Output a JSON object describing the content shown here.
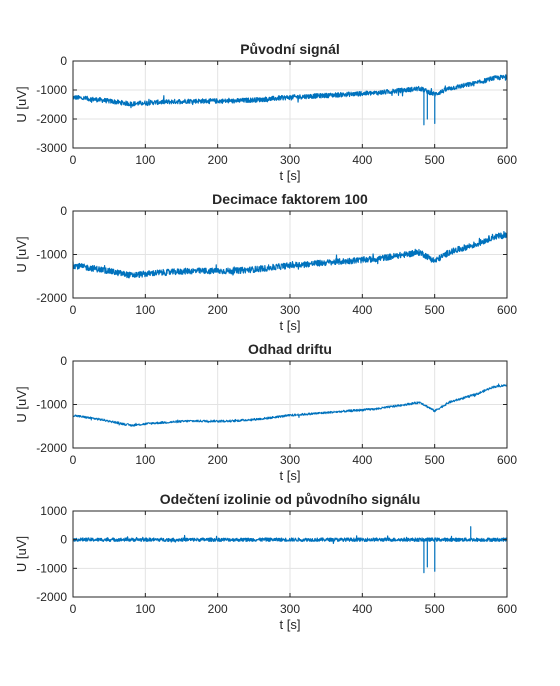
{
  "chart_data": [
    {
      "type": "line",
      "title": "Původní signál",
      "xlabel": "t [s]",
      "ylabel": "U [uV]",
      "xlim": [
        0,
        600
      ],
      "ylim": [
        -3000,
        0
      ],
      "xticks": [
        0,
        100,
        200,
        300,
        400,
        500,
        600
      ],
      "yticks": [
        -3000,
        -2000,
        -1000,
        0
      ],
      "grid": true,
      "color": "#0072BD",
      "trend_x": [
        0,
        40,
        80,
        110,
        160,
        220,
        260,
        300,
        340,
        380,
        420,
        460,
        480,
        500,
        520,
        540,
        560,
        580,
        600
      ],
      "trend_y": [
        -1250,
        -1350,
        -1480,
        -1430,
        -1380,
        -1380,
        -1330,
        -1250,
        -1200,
        -1150,
        -1100,
        -1000,
        -950,
        -1150,
        -950,
        -850,
        -750,
        -600,
        -550
      ],
      "noise": 80,
      "spikes": [
        [
          485,
          -2200
        ],
        [
          490,
          -2000
        ],
        [
          500,
          -2150
        ]
      ]
    },
    {
      "type": "line",
      "title": "Decimace faktorem 100",
      "xlabel": "t [s]",
      "ylabel": "U [uV]",
      "xlim": [
        0,
        600
      ],
      "ylim": [
        -2000,
        0
      ],
      "xticks": [
        0,
        100,
        200,
        300,
        400,
        500,
        600
      ],
      "yticks": [
        -2000,
        -1000,
        0
      ],
      "grid": true,
      "color": "#0072BD",
      "trend_x": [
        0,
        40,
        80,
        110,
        160,
        220,
        260,
        300,
        340,
        380,
        420,
        460,
        480,
        500,
        520,
        540,
        560,
        580,
        600
      ],
      "trend_y": [
        -1250,
        -1350,
        -1480,
        -1430,
        -1380,
        -1380,
        -1330,
        -1250,
        -1200,
        -1150,
        -1100,
        -1000,
        -950,
        -1150,
        -950,
        -850,
        -750,
        -600,
        -550
      ],
      "noise": 70,
      "spikes": []
    },
    {
      "type": "line",
      "title": "Odhad driftu",
      "xlabel": "t [s]",
      "ylabel": "U [uV]",
      "xlim": [
        0,
        600
      ],
      "ylim": [
        -2000,
        0
      ],
      "xticks": [
        0,
        100,
        200,
        300,
        400,
        500,
        600
      ],
      "yticks": [
        -2000,
        -1000,
        0
      ],
      "grid": true,
      "color": "#0072BD",
      "trend_x": [
        0,
        40,
        80,
        110,
        160,
        220,
        260,
        300,
        340,
        380,
        420,
        460,
        480,
        500,
        520,
        540,
        560,
        580,
        600
      ],
      "trend_y": [
        -1250,
        -1350,
        -1480,
        -1430,
        -1380,
        -1380,
        -1330,
        -1250,
        -1200,
        -1150,
        -1100,
        -1000,
        -950,
        -1150,
        -950,
        -850,
        -750,
        -600,
        -550
      ],
      "noise": 25,
      "spikes": []
    },
    {
      "type": "line",
      "title": "Odečtení izolinie od původního signálu",
      "xlabel": "t [s]",
      "ylabel": "U [uV]",
      "xlim": [
        0,
        600
      ],
      "ylim": [
        -2000,
        1000
      ],
      "xticks": [
        0,
        100,
        200,
        300,
        400,
        500,
        600
      ],
      "yticks": [
        -2000,
        -1000,
        0,
        1000
      ],
      "grid": true,
      "color": "#0072BD",
      "trend_x": [
        0,
        600
      ],
      "trend_y": [
        0,
        0
      ],
      "noise": 60,
      "spikes": [
        [
          485,
          -1150
        ],
        [
          490,
          -950
        ],
        [
          500,
          -1100
        ],
        [
          550,
          450
        ]
      ]
    }
  ]
}
